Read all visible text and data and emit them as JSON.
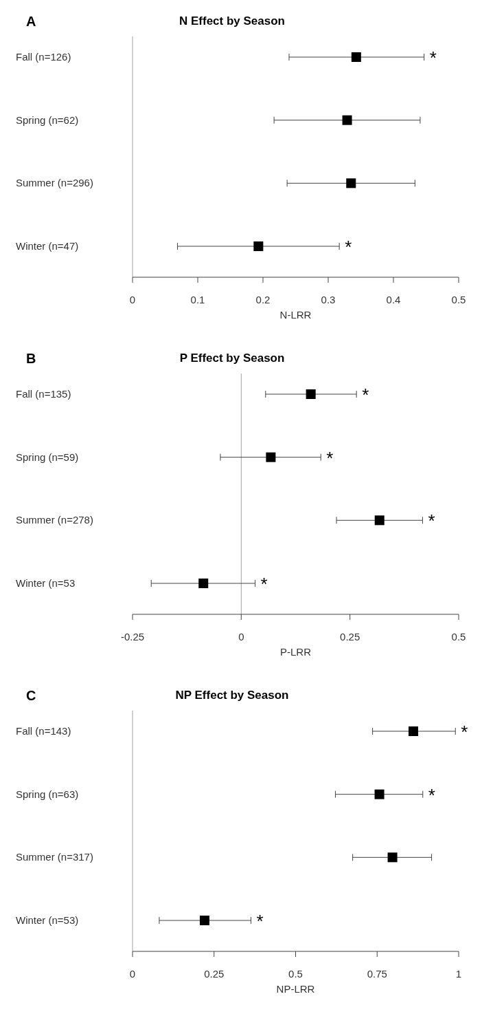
{
  "chart_data": [
    {
      "type": "scatter",
      "orientation": "horizontal",
      "title": "N Effect by Season",
      "xlabel": "N-LRR",
      "annotations": [
        "A",
        {
          "text": "*",
          "x": 0.447,
          "y": "Fall (n=126)"
        },
        {
          "text": "*",
          "x": 0.317,
          "y": "Winter (n=47)"
        }
      ],
      "categories": [
        "Fall (n=126)",
        "Spring (n=62)",
        "Summer (n=296)",
        "Winter (n=47)"
      ],
      "values": [
        0.343,
        0.329,
        0.335,
        0.193
      ],
      "errors": [
        [
          0.24,
          0.447
        ],
        [
          0.217,
          0.441
        ],
        [
          0.237,
          0.433
        ],
        [
          0.069,
          0.317
        ]
      ],
      "color": "#000000",
      "marker": "square",
      "xlim": [
        0,
        0.5
      ],
      "xticks": [
        0,
        0.1,
        0.2,
        0.3,
        0.4,
        0.5
      ],
      "ref_lines": [
        {
          "axis": "x",
          "value": 0,
          "color": "#a0a0a0"
        }
      ],
      "grid": false
    },
    {
      "type": "scatter",
      "orientation": "horizontal",
      "title": "P Effect by Season",
      "xlabel": "P-LRR",
      "annotations": [
        "B",
        {
          "text": "*",
          "x": 0.265,
          "y": "Fall (n=135)"
        },
        {
          "text": "*",
          "x": 0.183,
          "y": "Spring (n=59)"
        },
        {
          "text": "*",
          "x": 0.417,
          "y": "Summer (n=278)"
        },
        {
          "text": "*",
          "x": 0.032,
          "y": "Winter (n=53"
        }
      ],
      "categories": [
        "Fall (n=135)",
        "Spring (n=59)",
        "Summer (n=278)",
        "Winter (n=53"
      ],
      "values": [
        0.16,
        0.068,
        0.318,
        -0.087
      ],
      "errors": [
        [
          0.056,
          0.265
        ],
        [
          -0.048,
          0.183
        ],
        [
          0.219,
          0.417
        ],
        [
          -0.207,
          0.032
        ]
      ],
      "color": "#000000",
      "marker": "square",
      "xlim": [
        -0.25,
        0.5
      ],
      "xticks": [
        -0.25,
        0,
        0.25,
        0.5
      ],
      "ref_lines": [
        {
          "axis": "x",
          "value": 0,
          "color": "#a0a0a0"
        }
      ],
      "grid": false
    },
    {
      "type": "scatter",
      "orientation": "horizontal",
      "title": "NP Effect by Season",
      "xlabel": "NP-LRR",
      "annotations": [
        "C",
        {
          "text": "*",
          "x": 0.99,
          "y": "Fall (n=143)"
        },
        {
          "text": "*",
          "x": 0.89,
          "y": "Spring (n=63)"
        },
        {
          "text": "*",
          "x": 0.363,
          "y": "Winter (n=53)"
        }
      ],
      "categories": [
        "Fall (n=143)",
        "Spring (n=63)",
        "Summer (n=317)",
        "Winter (n=53)"
      ],
      "values": [
        0.861,
        0.757,
        0.797,
        0.221
      ],
      "errors": [
        [
          0.736,
          0.99
        ],
        [
          0.622,
          0.89
        ],
        [
          0.675,
          0.917
        ],
        [
          0.082,
          0.363
        ]
      ],
      "color": "#000000",
      "marker": "square",
      "xlim": [
        0,
        1
      ],
      "xticks": [
        0,
        0.25,
        0.5,
        0.75,
        1
      ],
      "ref_lines": [
        {
          "axis": "x",
          "value": 0,
          "color": "#a0a0a0"
        }
      ],
      "grid": false
    }
  ]
}
